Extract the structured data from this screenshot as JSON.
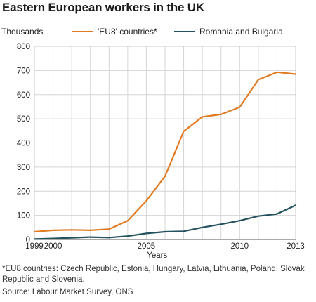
{
  "title": "Eastern European workers in the UK",
  "footnote": "*EU8 countries: Czech Republic, Estonia, Hungary, Latvia, Lithuania, Poland, Slovak Republic and Slovenia.",
  "source": "Source: Labour Market Survey, ONS",
  "chart_data": {
    "type": "line",
    "title": "Eastern European workers in the UK",
    "ylabel": "Thousands",
    "xlabel": "Years",
    "ylim": [
      0,
      800
    ],
    "xlim": [
      1999,
      2013
    ],
    "grid": true,
    "legend_position": "top",
    "yticks": [
      0,
      100,
      200,
      300,
      400,
      500,
      600,
      700,
      800
    ],
    "xticks": [
      {
        "value": 1999,
        "label": "1999"
      },
      {
        "value": 2000,
        "label": "2000"
      },
      {
        "value": 2005,
        "label": "2005"
      },
      {
        "value": 2010,
        "label": "2010"
      },
      {
        "value": 2013,
        "label": "2013"
      }
    ],
    "x": [
      1999,
      2000,
      2001,
      2002,
      2003,
      2004,
      2005,
      2006,
      2007,
      2008,
      2009,
      2010,
      2011,
      2012,
      2013
    ],
    "series": [
      {
        "name": "'EU8' countries*",
        "color": "#e07b21",
        "values": [
          32,
          38,
          40,
          38,
          43,
          78,
          160,
          262,
          448,
          508,
          518,
          548,
          662,
          693,
          685
        ]
      },
      {
        "name": "Romania and Bulgaria",
        "color": "#24525f",
        "values": [
          2,
          4,
          7,
          10,
          8,
          14,
          25,
          32,
          34,
          50,
          63,
          78,
          97,
          106,
          142
        ]
      }
    ]
  }
}
